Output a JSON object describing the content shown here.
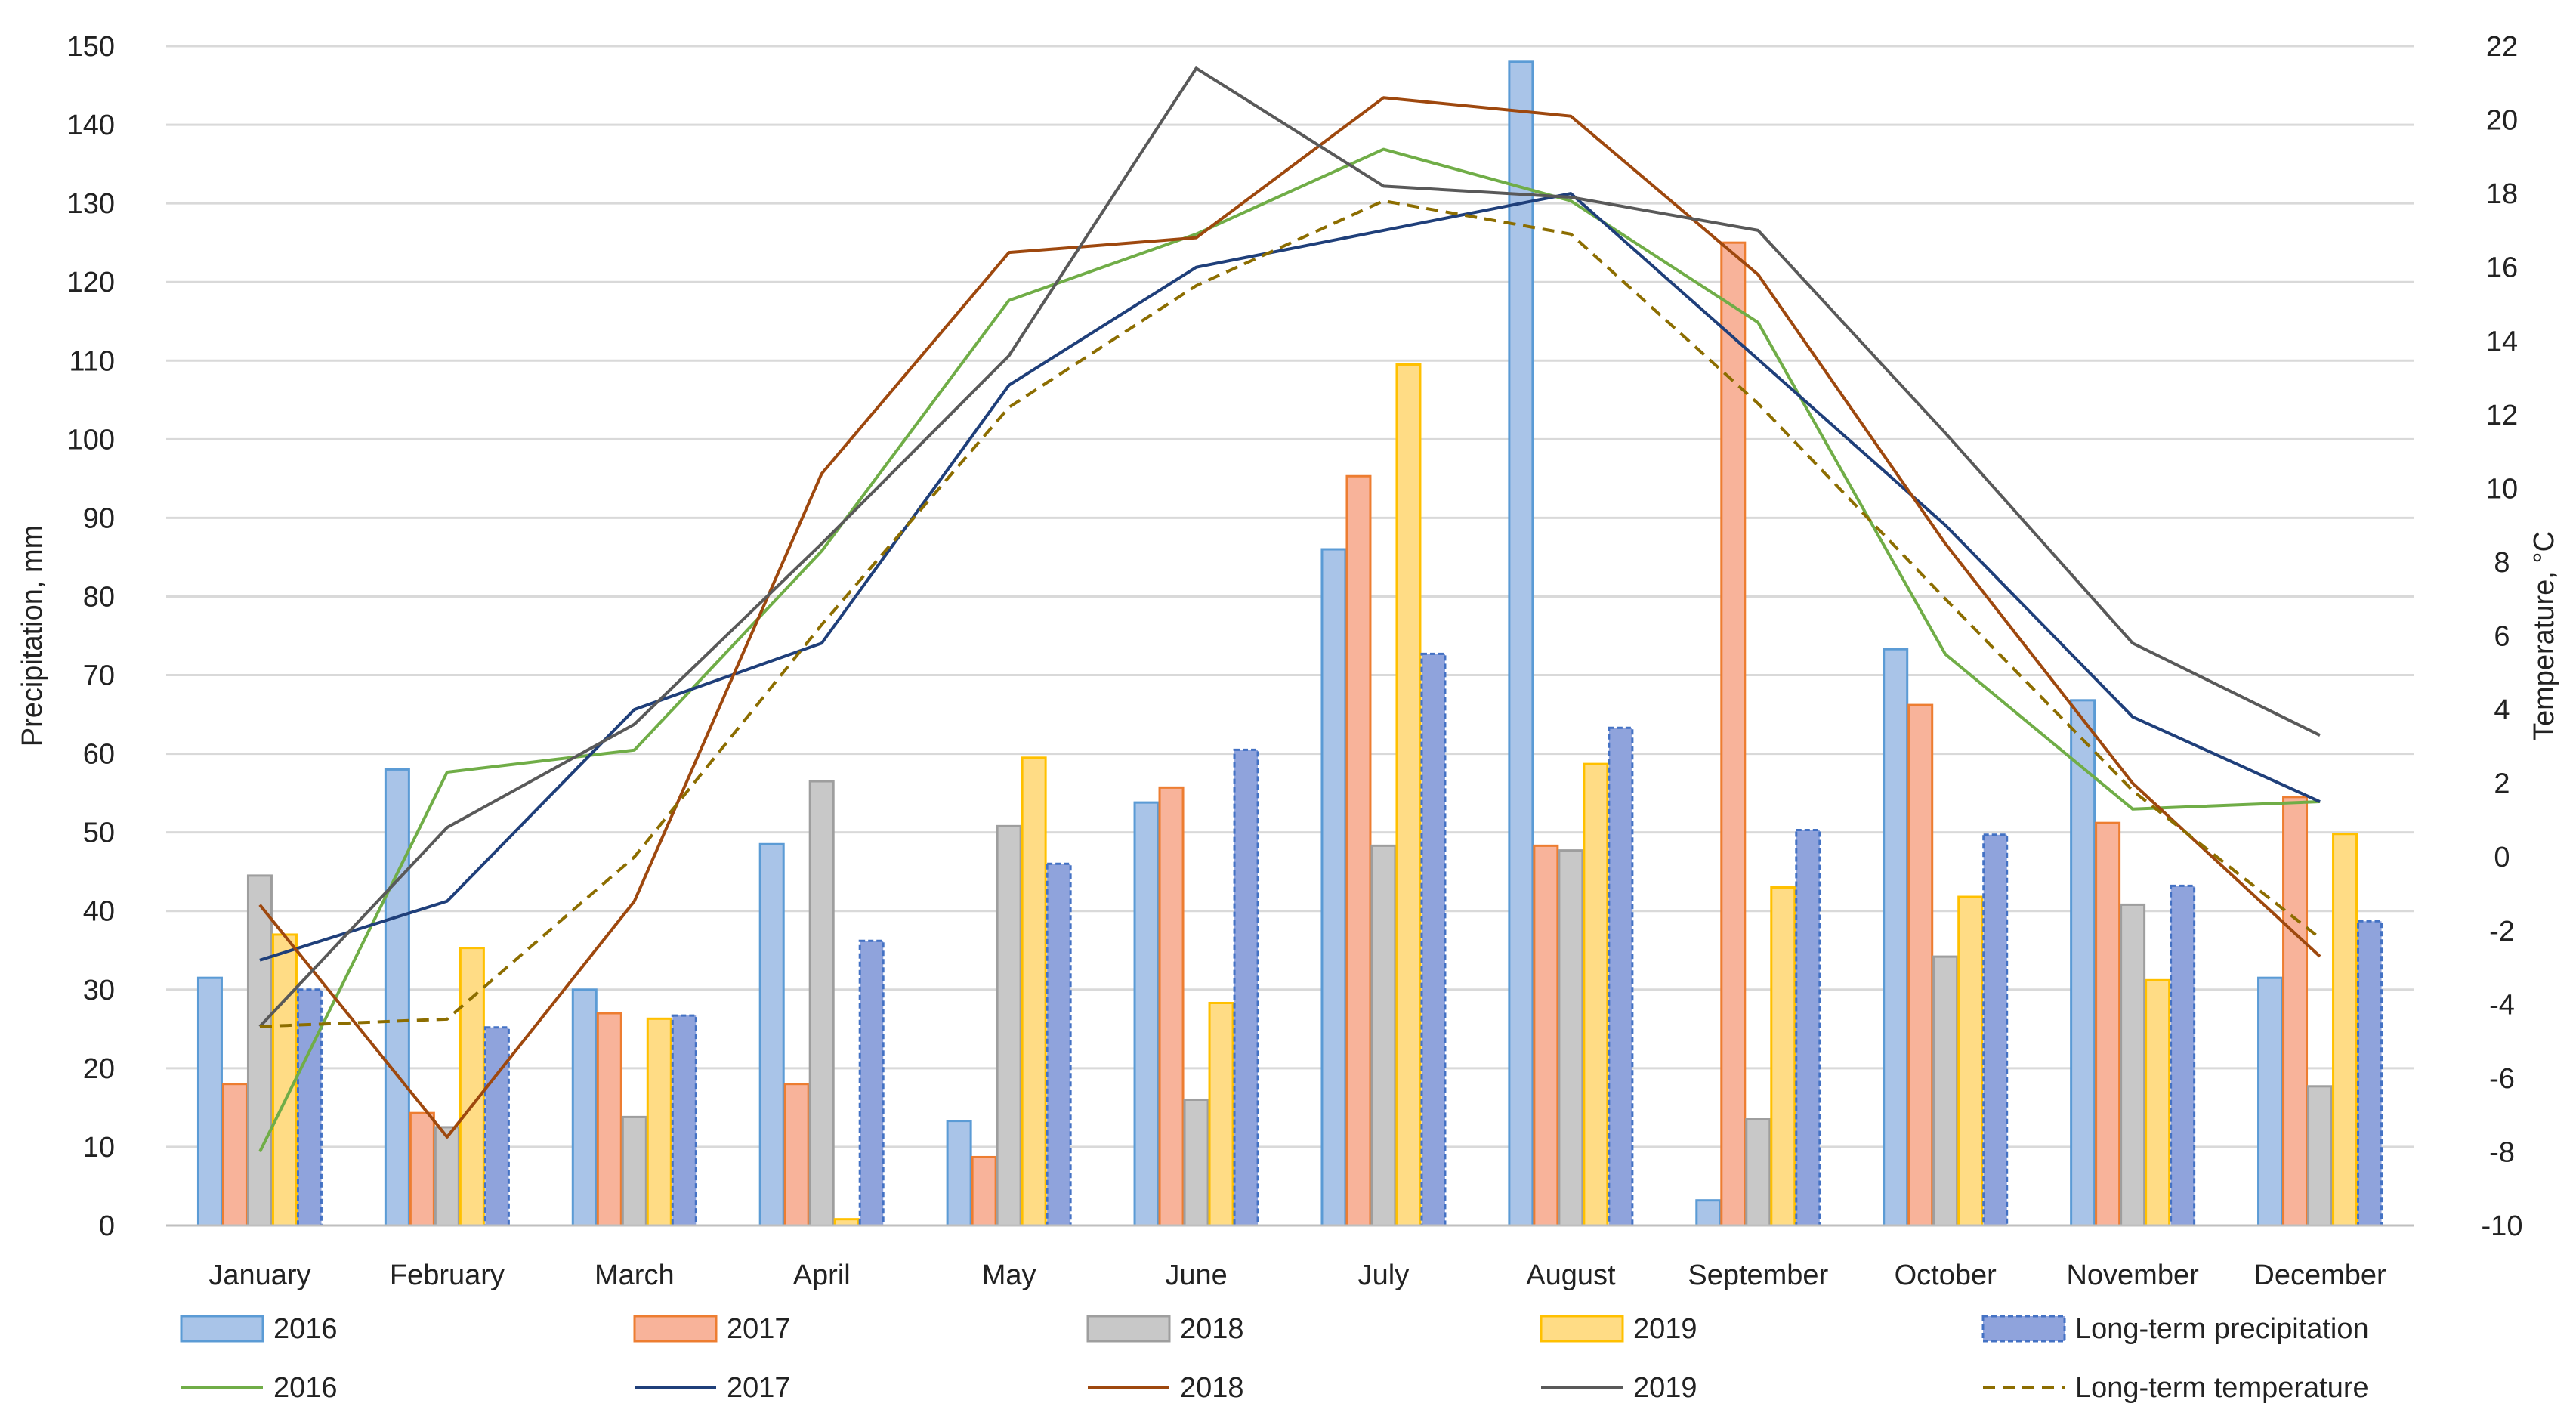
{
  "chart_data": {
    "type": "bar",
    "title": "",
    "categories": [
      "January",
      "February",
      "March",
      "April",
      "May",
      "June",
      "July",
      "August",
      "September",
      "October",
      "November",
      "December"
    ],
    "ylabel": "Precipitation, mm",
    "y2label": "Temperature, °C",
    "ylim": [
      0,
      150
    ],
    "y2lim": [
      -10,
      22
    ],
    "yticks": [
      "0",
      "10",
      "20",
      "30",
      "40",
      "50",
      "60",
      "70",
      "80",
      "90",
      "100",
      "110",
      "120",
      "130",
      "140",
      "150"
    ],
    "y2ticks": [
      "-10",
      "-8",
      "-6",
      "-4",
      "-2",
      "0",
      "2",
      "4",
      "6",
      "8",
      "10",
      "12",
      "14",
      "16",
      "18",
      "20",
      "22"
    ],
    "grid": true,
    "legend_position": "bottom",
    "bar_series": [
      {
        "name": "2016",
        "fill": "#a9c4e8",
        "stroke": "#5b9bd5",
        "values": [
          31.5,
          58,
          30,
          48.5,
          13.3,
          53.8,
          86,
          148,
          3.2,
          73.3,
          66.8,
          31.5
        ]
      },
      {
        "name": "2017",
        "fill": "#f8b39a",
        "stroke": "#ed7d31",
        "values": [
          18,
          14.3,
          27,
          18,
          8.7,
          55.7,
          95.3,
          48.3,
          125,
          66.2,
          51.2,
          54.5
        ]
      },
      {
        "name": "2018",
        "fill": "#c8c8c8",
        "stroke": "#9e9e9e",
        "values": [
          44.5,
          12.5,
          13.8,
          56.5,
          50.8,
          16,
          48.3,
          47.7,
          13.5,
          34.2,
          40.8,
          17.7
        ]
      },
      {
        "name": "2019",
        "fill": "#ffdc85",
        "stroke": "#ffc000",
        "values": [
          37,
          35.3,
          26.3,
          0.8,
          59.5,
          28.3,
          109.5,
          58.7,
          43,
          41.8,
          31.2,
          49.8
        ]
      },
      {
        "name": "Long-term precipitation",
        "fill": "#8fa3dc",
        "stroke": "#4472c4",
        "dashed": true,
        "values": [
          30,
          25.2,
          26.7,
          36.2,
          46,
          60.5,
          72.7,
          63.3,
          50.3,
          49.7,
          43.2,
          38.7
        ]
      }
    ],
    "line_series": [
      {
        "name": "2016",
        "color": "#70ad47",
        "values": [
          -8,
          2.3,
          2.9,
          8.3,
          15.1,
          16.9,
          19.2,
          17.8,
          14.5,
          5.5,
          1.3,
          1.5
        ]
      },
      {
        "name": "2017",
        "color": "#1f3f7a",
        "values": [
          -2.8,
          -1.2,
          4,
          5.8,
          12.8,
          16,
          17,
          18,
          13.5,
          9,
          3.8,
          1.5
        ]
      },
      {
        "name": "2018",
        "color": "#9e480e",
        "values": [
          -1.3,
          -7.6,
          -1.2,
          10.4,
          16.4,
          16.8,
          20.6,
          20.1,
          15.8,
          8.5,
          2,
          -2.7
        ]
      },
      {
        "name": "2019",
        "color": "#595959",
        "values": [
          -4.6,
          0.8,
          3.6,
          8.5,
          13.6,
          21.4,
          18.2,
          17.9,
          17,
          11.5,
          5.8,
          3.3
        ]
      },
      {
        "name": "Long-term temperature",
        "color": "#8c6d00",
        "dashed": true,
        "values": [
          -4.6,
          -4.4,
          0,
          6.3,
          12.2,
          15.5,
          17.8,
          16.9,
          12.3,
          7,
          1.8,
          -2.2
        ]
      }
    ]
  }
}
